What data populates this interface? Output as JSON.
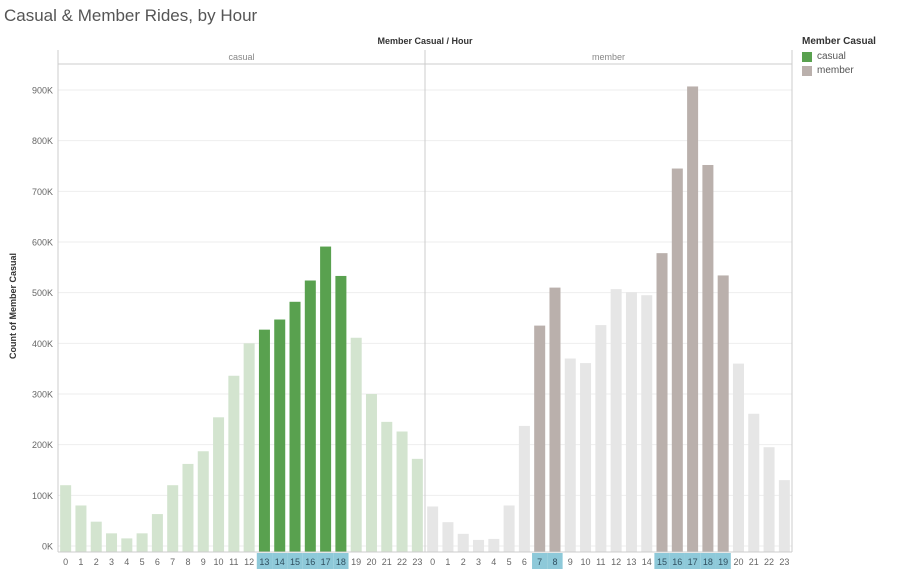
{
  "title": "Casual & Member Rides, by Hour",
  "colors": {
    "casual": "#59A14F",
    "member": "#BAB0AC",
    "highlight": "#8EC9D9"
  },
  "legend": {
    "title": "Member Casual",
    "items": [
      {
        "label": "casual",
        "color": "#59A14F"
      },
      {
        "label": "member",
        "color": "#BAB0AC"
      }
    ]
  },
  "chart_data": {
    "type": "bar",
    "title": "Casual & Member Rides, by Hour",
    "header_label": "Member Casual / Hour",
    "ylabel": "Count of Member Casual",
    "ylim": [
      0,
      960000
    ],
    "yticks": [
      0,
      100000,
      200000,
      300000,
      400000,
      500000,
      600000,
      700000,
      800000,
      900000
    ],
    "ytick_labels": [
      "0K",
      "100K",
      "200K",
      "300K",
      "400K",
      "500K",
      "600K",
      "700K",
      "800K",
      "900K"
    ],
    "grid": true,
    "legend_position": "right",
    "categories": [
      "0",
      "1",
      "2",
      "3",
      "4",
      "5",
      "6",
      "7",
      "8",
      "9",
      "10",
      "11",
      "12",
      "13",
      "14",
      "15",
      "16",
      "17",
      "18",
      "19",
      "20",
      "21",
      "22",
      "23"
    ],
    "panels": [
      {
        "name": "casual",
        "values": [
          120000,
          80000,
          48000,
          25000,
          15000,
          25000,
          63000,
          120000,
          162000,
          187000,
          254000,
          336000,
          400000,
          427000,
          447000,
          482000,
          524000,
          591000,
          533000,
          411000,
          300000,
          245000,
          226000,
          172000
        ],
        "highlighted": [
          "13",
          "14",
          "15",
          "16",
          "17",
          "18"
        ]
      },
      {
        "name": "member",
        "values": [
          78000,
          47000,
          24000,
          12000,
          14000,
          80000,
          237000,
          435000,
          510000,
          370000,
          361000,
          436000,
          507000,
          501000,
          495000,
          578000,
          745000,
          907000,
          752000,
          534000,
          360000,
          261000,
          195000,
          130000
        ],
        "highlighted": [
          "7",
          "8",
          "15",
          "16",
          "17",
          "18",
          "19"
        ]
      }
    ]
  }
}
